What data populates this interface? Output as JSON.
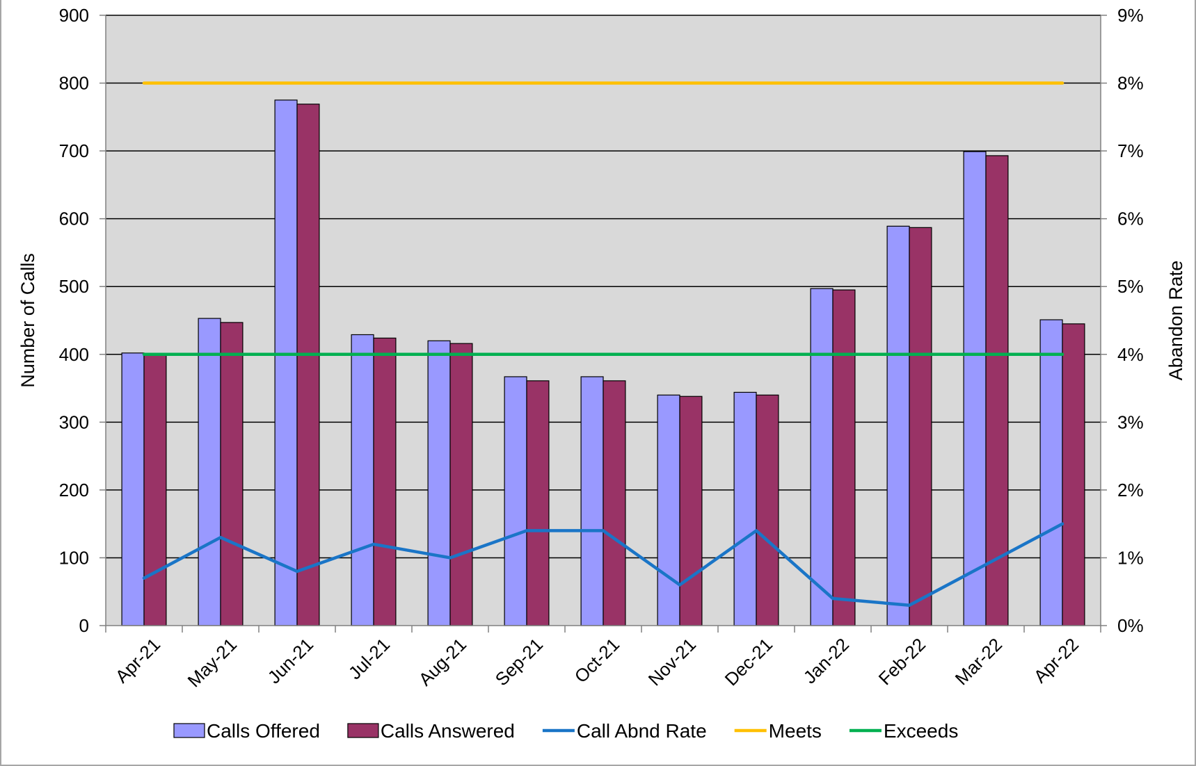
{
  "chart_data": {
    "type": "bar",
    "categories": [
      "Apr-21",
      "May-21",
      "Jun-21",
      "Jul-21",
      "Aug-21",
      "Sep-21",
      "Oct-21",
      "Nov-21",
      "Dec-21",
      "Jan-22",
      "Feb-22",
      "Mar-22",
      "Apr-22"
    ],
    "series": [
      {
        "name": "Calls Offered",
        "type": "bar",
        "axis": "left",
        "color": "#9999ff",
        "values": [
          402,
          453,
          775,
          429,
          420,
          367,
          367,
          340,
          344,
          497,
          589,
          699,
          451
        ]
      },
      {
        "name": "Calls Answered",
        "type": "bar",
        "axis": "left",
        "color": "#993366",
        "values": [
          399,
          447,
          769,
          424,
          416,
          361,
          361,
          338,
          340,
          495,
          587,
          693,
          445
        ]
      },
      {
        "name": "Call Abnd Rate",
        "type": "line",
        "axis": "right",
        "color": "#1a75c7",
        "values": [
          0.7,
          1.3,
          0.8,
          1.2,
          1.0,
          1.4,
          1.4,
          0.6,
          1.4,
          0.4,
          0.3,
          0.9,
          1.5
        ]
      },
      {
        "name": "Meets",
        "type": "line",
        "axis": "right",
        "color": "#ffc000",
        "values": [
          8,
          8,
          8,
          8,
          8,
          8,
          8,
          8,
          8,
          8,
          8,
          8,
          8
        ]
      },
      {
        "name": "Exceeds",
        "type": "line",
        "axis": "right",
        "color": "#00b050",
        "values": [
          4,
          4,
          4,
          4,
          4,
          4,
          4,
          4,
          4,
          4,
          4,
          4,
          4
        ]
      }
    ],
    "ylabel": "Number of Calls",
    "y2label": "Abandon Rate",
    "ylim": [
      0,
      900
    ],
    "yticks": [
      0,
      100,
      200,
      300,
      400,
      500,
      600,
      700,
      800,
      900
    ],
    "y2lim": [
      0,
      9
    ],
    "y2ticks": [
      "0%",
      "1%",
      "2%",
      "3%",
      "4%",
      "5%",
      "6%",
      "7%",
      "8%",
      "9%"
    ],
    "grid": true,
    "plot_background": "#d9d9d9",
    "legend_position": "bottom"
  }
}
